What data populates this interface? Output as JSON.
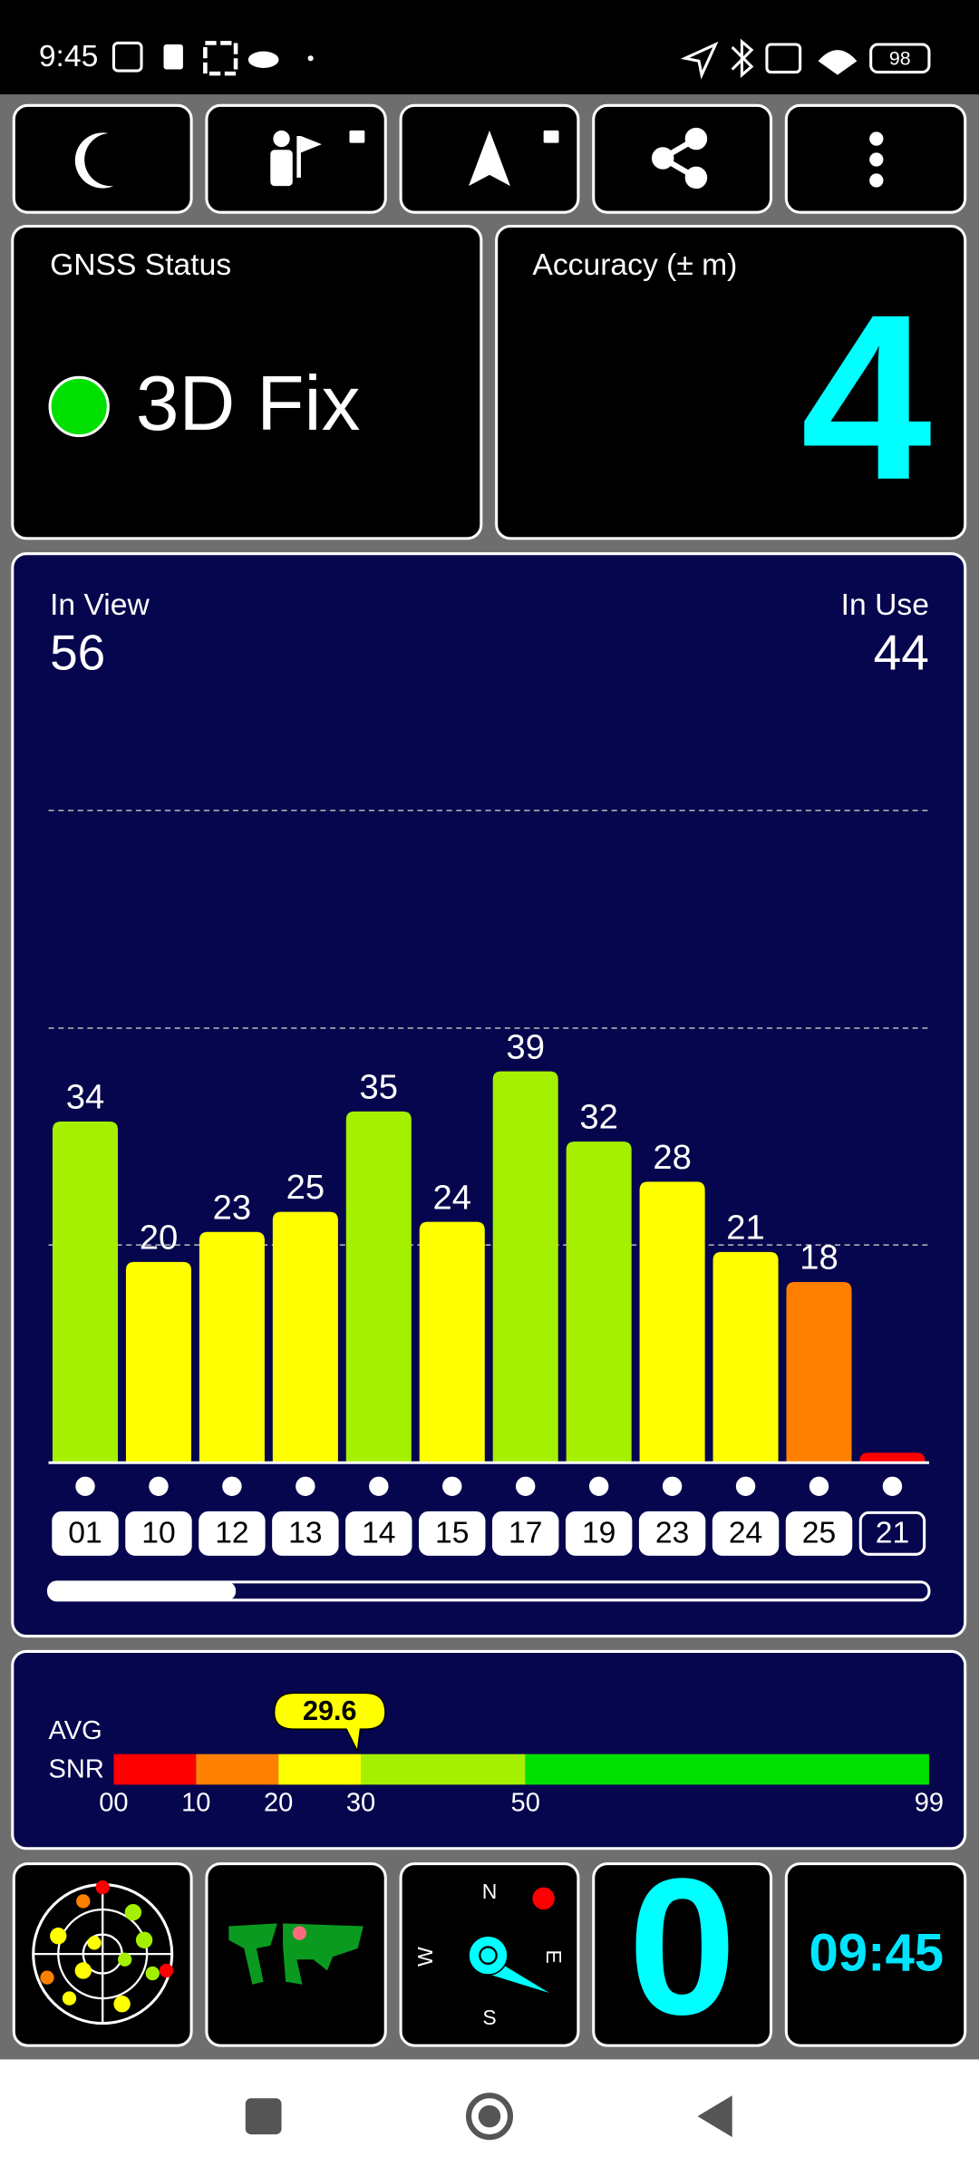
{
  "status_bar": {
    "time": "9:45",
    "battery": "98"
  },
  "gnss_status": {
    "title": "GNSS Status",
    "value": "3D Fix"
  },
  "accuracy": {
    "title": "Accuracy (± m)",
    "value": "4"
  },
  "satellites": {
    "in_view_label": "In View",
    "in_view": "56",
    "in_use_label": "In Use",
    "in_use": "44"
  },
  "chart_data": [
    {
      "type": "bar",
      "categories": [
        "01",
        "10",
        "12",
        "13",
        "14",
        "15",
        "17",
        "19",
        "23",
        "24",
        "25",
        "21"
      ],
      "values": [
        34,
        20,
        23,
        25,
        35,
        24,
        39,
        32,
        28,
        21,
        18,
        1
      ],
      "value_labels": [
        "34",
        "20",
        "23",
        "25",
        "35",
        "24",
        "39",
        "32",
        "28",
        "21",
        "18",
        null
      ],
      "colors": [
        "#a4f000",
        "#ffff00",
        "#ffff00",
        "#ffff00",
        "#a4f000",
        "#ffff00",
        "#a4f000",
        "#a4f000",
        "#ffff00",
        "#ffff00",
        "#ff8000",
        "#ff0000"
      ],
      "in_use": [
        true,
        true,
        true,
        true,
        true,
        true,
        true,
        true,
        true,
        true,
        true,
        false
      ],
      "ylim": [
        0,
        65
      ],
      "gridlines": [
        21.7,
        43.3,
        65
      ]
    },
    {
      "type": "gauge",
      "labels": [
        "AVG",
        "SNR"
      ],
      "value": 29.6,
      "xlim": [
        0,
        99
      ],
      "xticks": [
        {
          "value": 0,
          "label": "00"
        },
        10,
        20,
        30,
        50,
        99
      ],
      "colors": [
        "#ff0000",
        "#ff8000",
        "#ffff00",
        "#a4f000",
        "#00e000"
      ],
      "marker_color": "#ffff00"
    }
  ],
  "tiles": {
    "clock": "09:45",
    "speed": "0",
    "compass": [
      "N",
      "E",
      "S",
      "W"
    ]
  }
}
